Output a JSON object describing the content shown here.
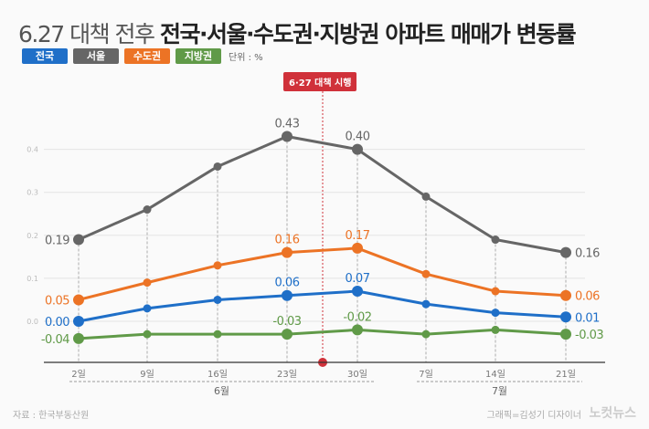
{
  "title": {
    "prefix": "6.27 대책 전후",
    "main": "전국·서울·수도권·지방권 아파트 매매가 변동률"
  },
  "unit": "단위 : %",
  "policy_marker": "6·27 대책 시행",
  "source": "자료 : 한국부동산원",
  "credit": "그래픽=김성기 디자이너",
  "logo": "노컷뉴스",
  "chart_data": {
    "type": "line",
    "categories": [
      "2일",
      "9일",
      "16일",
      "23일",
      "30일",
      "7일",
      "14일",
      "21일"
    ],
    "month_groups": [
      {
        "label": "6월",
        "from": 0,
        "to": 4
      },
      {
        "label": "7월",
        "from": 5,
        "to": 7
      }
    ],
    "ylim": [
      -0.07,
      0.45
    ],
    "yticks": [
      "0.0",
      "0.1",
      "0.2",
      "0.3",
      "0.4"
    ],
    "ytick_values": [
      0,
      0.1,
      0.2,
      0.3,
      0.4
    ],
    "event": {
      "label": "6·27 대책 시행",
      "between": [
        3,
        4
      ]
    },
    "series": [
      {
        "name": "서울",
        "color": "#666666",
        "values": [
          0.19,
          0.26,
          0.36,
          0.43,
          0.4,
          0.29,
          0.19,
          0.16
        ],
        "labels": {
          "0": "0.19",
          "3": "0.43",
          "4": "0.40",
          "7": "0.16"
        }
      },
      {
        "name": "수도권",
        "color": "#ec7325",
        "values": [
          0.05,
          0.09,
          0.13,
          0.16,
          0.17,
          0.11,
          0.07,
          0.06
        ],
        "labels": {
          "0": "0.05",
          "3": "0.16",
          "4": "0.17",
          "7": "0.06"
        }
      },
      {
        "name": "전국",
        "color": "#1f6fc8",
        "values": [
          0.0,
          0.03,
          0.05,
          0.06,
          0.07,
          0.04,
          0.02,
          0.01
        ],
        "labels": {
          "0": "0.00",
          "3": "0.06",
          "4": "0.07",
          "7": "0.01"
        }
      },
      {
        "name": "지방권",
        "color": "#609a48",
        "values": [
          -0.04,
          -0.03,
          -0.03,
          -0.03,
          -0.02,
          -0.03,
          -0.02,
          -0.03
        ],
        "labels": {
          "0": "-0.04",
          "3": "-0.03",
          "4": "-0.02",
          "7": "-0.03"
        }
      }
    ]
  }
}
